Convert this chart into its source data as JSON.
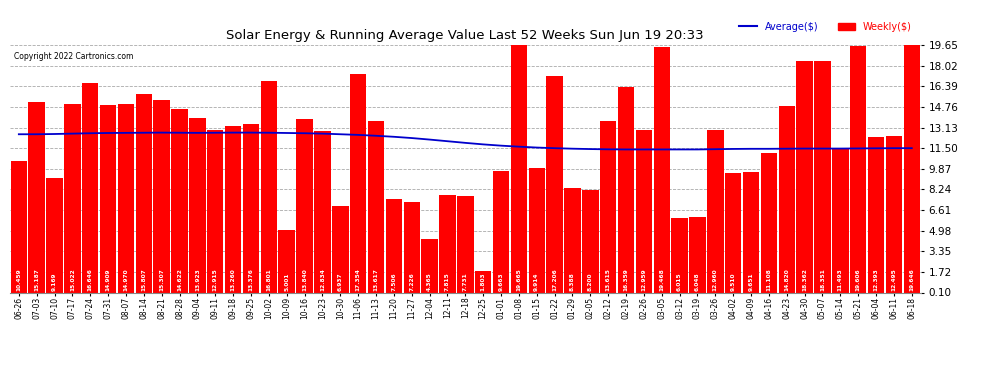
{
  "title": "Solar Energy & Running Average Value Last 52 Weeks Sun Jun 19 20:33",
  "copyright": "Copyright 2022 Cartronics.com",
  "legend_avg": "Average($)",
  "legend_weekly": "Weekly($)",
  "yticks": [
    0.1,
    1.72,
    3.35,
    4.98,
    6.61,
    8.24,
    9.87,
    11.5,
    13.13,
    14.76,
    16.39,
    18.02,
    19.65
  ],
  "ylim": [
    0.1,
    19.65
  ],
  "bar_color": "#ff0000",
  "avg_line_color": "#0000cc",
  "weekly_label_color": "#ff0000",
  "avg_label_color": "#0000cc",
  "background_color": "#ffffff",
  "grid_color": "#aaaaaa",
  "categories": [
    "06-26",
    "07-03",
    "07-10",
    "07-17",
    "07-24",
    "07-31",
    "08-07",
    "08-14",
    "08-21",
    "08-28",
    "09-04",
    "09-11",
    "09-18",
    "09-25",
    "10-02",
    "10-09",
    "10-16",
    "10-23",
    "10-30",
    "11-06",
    "11-13",
    "11-20",
    "11-27",
    "12-04",
    "12-11",
    "12-18",
    "12-25",
    "01-01",
    "01-08",
    "01-15",
    "01-22",
    "01-29",
    "02-05",
    "02-12",
    "02-19",
    "02-26",
    "03-05",
    "03-12",
    "03-19",
    "03-26",
    "04-02",
    "04-09",
    "04-16",
    "04-23",
    "04-30",
    "05-07",
    "05-14",
    "05-21",
    "06-04",
    "06-11",
    "06-18"
  ],
  "weekly_values": [
    10.459,
    15.187,
    9.169,
    15.022,
    16.646,
    14.909,
    14.97,
    15.807,
    15.307,
    14.622,
    13.923,
    12.915,
    13.26,
    13.376,
    16.801,
    5.001,
    13.84,
    12.834,
    6.937,
    17.354,
    13.617,
    7.506,
    7.226,
    4.365,
    7.815,
    7.731,
    1.803,
    9.663,
    19.665,
    9.914,
    17.206,
    8.388,
    8.2,
    13.615,
    16.359,
    12.959,
    19.468,
    6.015,
    6.048,
    12.96,
    9.51,
    9.651,
    11.108,
    14.82,
    18.362,
    18.351,
    11.493,
    19.606,
    12.393,
    12.495,
    19.646
  ],
  "avg_values": [
    12.6,
    12.6,
    12.62,
    12.65,
    12.68,
    12.7,
    12.71,
    12.72,
    12.73,
    12.72,
    12.71,
    12.72,
    12.73,
    12.73,
    12.72,
    12.7,
    12.68,
    12.65,
    12.6,
    12.55,
    12.48,
    12.4,
    12.3,
    12.18,
    12.05,
    11.92,
    11.8,
    11.7,
    11.62,
    11.55,
    11.5,
    11.46,
    11.43,
    11.41,
    11.4,
    11.4,
    11.4,
    11.4,
    11.4,
    11.42,
    11.44,
    11.45,
    11.45,
    11.46,
    11.47,
    11.47,
    11.47,
    11.48,
    11.49,
    11.5,
    11.5
  ]
}
